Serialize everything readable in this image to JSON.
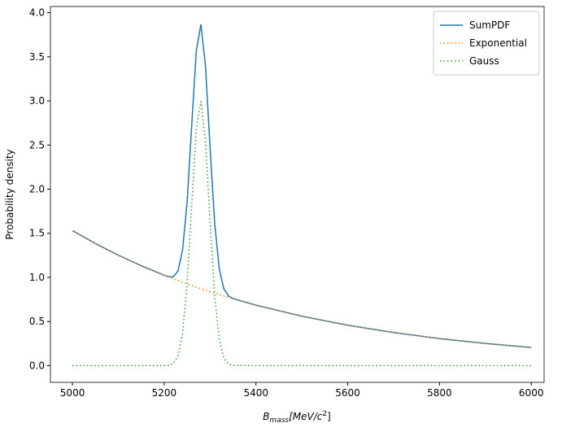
{
  "chart_data": {
    "type": "line",
    "xlabel": [
      "B",
      "mass",
      "[MeV/c",
      "2",
      "]"
    ],
    "ylabel": "Probability density",
    "x": [
      5000,
      5050,
      5100,
      5150,
      5200,
      5210,
      5220,
      5230,
      5240,
      5250,
      5260,
      5270,
      5280,
      5290,
      5300,
      5310,
      5320,
      5330,
      5340,
      5350,
      5400,
      5500,
      5600,
      5700,
      5800,
      5900,
      6000
    ],
    "series": [
      {
        "name": "SumPDF",
        "color": "#1f77b4",
        "dash": "solid",
        "values": [
          1.53,
          1.384,
          1.251,
          1.132,
          1.024,
          1.007,
          1.007,
          1.072,
          1.309,
          1.862,
          2.727,
          3.569,
          3.868,
          3.394,
          2.467,
          1.614,
          1.096,
          0.87,
          0.79,
          0.76,
          0.685,
          0.56,
          0.458,
          0.375,
          0.306,
          0.251,
          0.205
        ]
      },
      {
        "name": "Exponential",
        "color": "#ff7f0e",
        "dash": "dotted",
        "values": [
          1.53,
          1.384,
          1.251,
          1.132,
          1.024,
          1.003,
          0.983,
          0.964,
          0.944,
          0.926,
          0.907,
          0.889,
          0.872,
          0.854,
          0.837,
          0.821,
          0.804,
          0.788,
          0.773,
          0.757,
          0.685,
          0.56,
          0.458,
          0.375,
          0.306,
          0.251,
          0.205
        ]
      },
      {
        "name": "Gauss",
        "color": "#2ca02c",
        "dash": "dotted",
        "values": [
          0,
          0,
          0,
          0,
          0,
          0.004,
          0.024,
          0.108,
          0.365,
          0.936,
          1.82,
          2.68,
          2.996,
          2.54,
          1.63,
          0.793,
          0.292,
          0.082,
          0.017,
          0.003,
          0,
          0,
          0,
          0,
          0,
          0,
          0
        ]
      }
    ],
    "xlim": [
      4952,
      6028
    ],
    "ylim": [
      -0.19,
      4.07
    ],
    "xticks": [
      5000,
      5200,
      5400,
      5600,
      5800,
      6000
    ],
    "yticks": [
      {
        "value": 0,
        "label": "0.0"
      },
      {
        "value": 0.5,
        "label": "0.5"
      },
      {
        "value": 1,
        "label": "1.0"
      },
      {
        "value": 1.5,
        "label": "1.5"
      },
      {
        "value": 2,
        "label": "2.0"
      },
      {
        "value": 2.5,
        "label": "2.5"
      },
      {
        "value": 3,
        "label": "3.0"
      },
      {
        "value": 3.5,
        "label": "3.5"
      },
      {
        "value": 4,
        "label": "4.0"
      }
    ],
    "legend": "upper right",
    "grid": false
  }
}
